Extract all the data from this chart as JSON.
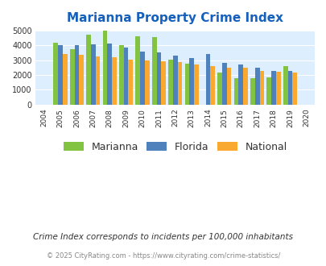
{
  "title": "Marianna Property Crime Index",
  "years": [
    2005,
    2006,
    2007,
    2008,
    2009,
    2010,
    2011,
    2012,
    2013,
    2014,
    2015,
    2016,
    2017,
    2018,
    2019
  ],
  "marianna": [
    4200,
    3750,
    4750,
    5000,
    4050,
    4650,
    4575,
    3050,
    2775,
    0,
    2150,
    1800,
    1800,
    1850,
    2625
  ],
  "florida": [
    4025,
    4000,
    4100,
    4150,
    3850,
    3575,
    3525,
    3300,
    3125,
    3400,
    2825,
    2700,
    2500,
    2300,
    2300
  ],
  "national": [
    3450,
    3350,
    3275,
    3225,
    3050,
    2975,
    2925,
    2875,
    2725,
    2600,
    2500,
    2475,
    2300,
    2225,
    2150
  ],
  "marianna_color": "#82c341",
  "florida_color": "#4f81bd",
  "national_color": "#f9a930",
  "bg_color": "#ddeeff",
  "ylim": [
    0,
    5000
  ],
  "yticks": [
    0,
    1000,
    2000,
    3000,
    4000,
    5000
  ],
  "xticks_all": [
    2004,
    2005,
    2006,
    2007,
    2008,
    2009,
    2010,
    2011,
    2012,
    2013,
    2014,
    2015,
    2016,
    2017,
    2018,
    2019,
    2020
  ],
  "legend_labels": [
    "Marianna",
    "Florida",
    "National"
  ],
  "footnote1": "Crime Index corresponds to incidents per 100,000 inhabitants",
  "footnote2": "© 2025 CityRating.com - https://www.cityrating.com/crime-statistics/",
  "title_color": "#1560bd",
  "footnote1_color": "#333333",
  "footnote2_color": "#888888"
}
